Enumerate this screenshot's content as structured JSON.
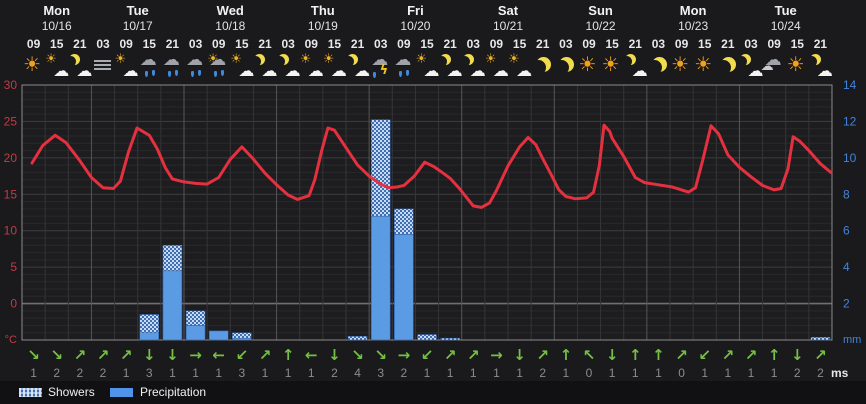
{
  "legend": {
    "showers_label": "Showers",
    "precipitation_label": "Precipitation"
  },
  "axis_units": {
    "temp": "°C",
    "precip": "mm",
    "wind": "ms"
  },
  "days": [
    {
      "label": "Mon",
      "date": "10/16",
      "cols": 3
    },
    {
      "label": "Tue",
      "date": "10/17",
      "cols": 4
    },
    {
      "label": "Wed",
      "date": "10/18",
      "cols": 4
    },
    {
      "label": "Thu",
      "date": "10/19",
      "cols": 4
    },
    {
      "label": "Fri",
      "date": "10/20",
      "cols": 4
    },
    {
      "label": "Sat",
      "date": "10/21",
      "cols": 4
    },
    {
      "label": "Sun",
      "date": "10/22",
      "cols": 4
    },
    {
      "label": "Mon",
      "date": "10/23",
      "cols": 4
    },
    {
      "label": "Tue",
      "date": "10/24",
      "cols": 4
    }
  ],
  "columns": [
    {
      "hour": "09",
      "icon": "sun",
      "wind_dir": "se",
      "wind_speed": 1
    },
    {
      "hour": "15",
      "icon": "sun-cloud",
      "wind_dir": "se",
      "wind_speed": 2
    },
    {
      "hour": "21",
      "icon": "moon-cloud",
      "wind_dir": "ne",
      "wind_speed": 2
    },
    {
      "hour": "03",
      "icon": "fog",
      "wind_dir": "ne",
      "wind_speed": 2
    },
    {
      "hour": "09",
      "icon": "sun-cloud",
      "wind_dir": "ne",
      "wind_speed": 1
    },
    {
      "hour": "15",
      "icon": "rain",
      "wind_dir": "s",
      "wind_speed": 3
    },
    {
      "hour": "21",
      "icon": "rain",
      "wind_dir": "s",
      "wind_speed": 1
    },
    {
      "hour": "03",
      "icon": "rain",
      "wind_dir": "e",
      "wind_speed": 1
    },
    {
      "hour": "09",
      "icon": "sun-rain",
      "wind_dir": "w",
      "wind_speed": 1
    },
    {
      "hour": "15",
      "icon": "sun-cloud",
      "wind_dir": "sw",
      "wind_speed": 3
    },
    {
      "hour": "21",
      "icon": "moon-cloud",
      "wind_dir": "ne",
      "wind_speed": 1
    },
    {
      "hour": "03",
      "icon": "moon-cloud",
      "wind_dir": "n",
      "wind_speed": 1
    },
    {
      "hour": "09",
      "icon": "sun-cloud",
      "wind_dir": "w",
      "wind_speed": 1
    },
    {
      "hour": "15",
      "icon": "sun-cloud",
      "wind_dir": "s",
      "wind_speed": 2
    },
    {
      "hour": "21",
      "icon": "moon-cloud",
      "wind_dir": "se",
      "wind_speed": 4
    },
    {
      "hour": "03",
      "icon": "thunder",
      "wind_dir": "se",
      "wind_speed": 3
    },
    {
      "hour": "09",
      "icon": "rain",
      "wind_dir": "e",
      "wind_speed": 2
    },
    {
      "hour": "15",
      "icon": "sun-cloud",
      "wind_dir": "sw",
      "wind_speed": 1
    },
    {
      "hour": "21",
      "icon": "moon-cloud",
      "wind_dir": "ne",
      "wind_speed": 1
    },
    {
      "hour": "03",
      "icon": "moon-cloud",
      "wind_dir": "ne",
      "wind_speed": 1
    },
    {
      "hour": "09",
      "icon": "sun-cloud",
      "wind_dir": "e",
      "wind_speed": 1
    },
    {
      "hour": "15",
      "icon": "sun-cloud",
      "wind_dir": "s",
      "wind_speed": 1
    },
    {
      "hour": "21",
      "icon": "moon",
      "wind_dir": "ne",
      "wind_speed": 2
    },
    {
      "hour": "03",
      "icon": "moon",
      "wind_dir": "n",
      "wind_speed": 1
    },
    {
      "hour": "09",
      "icon": "sun",
      "wind_dir": "nw",
      "wind_speed": 0
    },
    {
      "hour": "15",
      "icon": "sun",
      "wind_dir": "s",
      "wind_speed": 1
    },
    {
      "hour": "21",
      "icon": "moon-cloud",
      "wind_dir": "n",
      "wind_speed": 1
    },
    {
      "hour": "03",
      "icon": "moon",
      "wind_dir": "n",
      "wind_speed": 1
    },
    {
      "hour": "09",
      "icon": "sun",
      "wind_dir": "ne",
      "wind_speed": 0
    },
    {
      "hour": "15",
      "icon": "sun",
      "wind_dir": "sw",
      "wind_speed": 1
    },
    {
      "hour": "21",
      "icon": "moon",
      "wind_dir": "ne",
      "wind_speed": 1
    },
    {
      "hour": "03",
      "icon": "moon-cloud",
      "wind_dir": "ne",
      "wind_speed": 1
    },
    {
      "hour": "09",
      "icon": "cloudy",
      "wind_dir": "n",
      "wind_speed": 1
    },
    {
      "hour": "15",
      "icon": "sun",
      "wind_dir": "s",
      "wind_speed": 2
    },
    {
      "hour": "21",
      "icon": "moon-cloud",
      "wind_dir": "ne",
      "wind_speed": 2
    }
  ],
  "chart_data": {
    "type": "line",
    "title": "",
    "categories": [
      "09",
      "15",
      "21",
      "03",
      "09",
      "15",
      "21",
      "03",
      "09",
      "15",
      "21",
      "03",
      "09",
      "15",
      "21",
      "03",
      "09",
      "15",
      "21",
      "03",
      "09",
      "15",
      "21",
      "03",
      "09",
      "15",
      "21",
      "03",
      "09",
      "15",
      "21",
      "03",
      "09",
      "15",
      "21"
    ],
    "left_axis": {
      "label": "°C",
      "range": [
        -5,
        30
      ],
      "ticks": [
        30,
        25,
        20,
        15,
        10,
        5,
        0
      ]
    },
    "right_axis": {
      "label": "mm",
      "range": [
        0,
        14
      ],
      "ticks": [
        14,
        12,
        10,
        8,
        6,
        4,
        2
      ]
    },
    "grid": true,
    "legend_position": "bottom-left",
    "series": [
      {
        "name": "Temperature",
        "type": "line",
        "unit": "°C",
        "values": [
          19.3,
          23.1,
          19.6,
          15.9,
          20.0,
          23.1,
          17.1,
          16.5,
          17.3,
          21.5,
          17.9,
          14.9,
          16.5,
          23.8,
          19.0,
          16.4,
          16.2,
          19.3,
          17.2,
          13.4,
          15.5,
          21.5,
          19.9,
          14.7,
          14.6,
          22.7,
          17.3,
          16.3,
          15.6,
          22.0,
          20.4,
          17.4,
          15.6,
          22.5,
          19.2
        ]
      },
      {
        "name": "Precipitation",
        "type": "bar",
        "unit": "mm",
        "values": [
          0,
          0,
          0,
          0,
          0,
          0.4,
          3.8,
          0.8,
          0.5,
          0.1,
          0,
          0,
          0,
          0,
          0,
          6.8,
          5.8,
          0,
          0,
          0,
          0,
          0,
          0,
          0,
          0,
          0,
          0,
          0,
          0,
          0,
          0,
          0,
          0,
          0,
          0
        ]
      },
      {
        "name": "Showers",
        "type": "bar",
        "unit": "mm",
        "values": [
          0,
          0,
          0,
          0,
          0,
          1.0,
          1.4,
          0.8,
          0,
          0.3,
          0,
          0,
          0,
          0,
          0.2,
          5.3,
          1.4,
          0.3,
          0.1,
          0,
          0,
          0,
          0,
          0,
          0,
          0,
          0,
          0,
          0,
          0,
          0,
          0,
          0,
          0,
          0.15
        ]
      }
    ],
    "curve_points": [
      [
        -0.07,
        19.3
      ],
      [
        0.4,
        21.7
      ],
      [
        0.93,
        23.1
      ],
      [
        1.4,
        22.1
      ],
      [
        2.0,
        19.6
      ],
      [
        2.5,
        17.3
      ],
      [
        3.0,
        15.9
      ],
      [
        3.45,
        15.8
      ],
      [
        3.75,
        16.8
      ],
      [
        4.1,
        20.8
      ],
      [
        4.47,
        24.1
      ],
      [
        5.0,
        23.1
      ],
      [
        5.35,
        21.2
      ],
      [
        5.7,
        18.6
      ],
      [
        6.0,
        17.1
      ],
      [
        6.5,
        16.7
      ],
      [
        7.0,
        16.5
      ],
      [
        7.5,
        16.4
      ],
      [
        8.0,
        17.3
      ],
      [
        8.5,
        19.8
      ],
      [
        9.0,
        21.5
      ],
      [
        9.45,
        20.0
      ],
      [
        10.0,
        17.9
      ],
      [
        10.5,
        16.3
      ],
      [
        11.0,
        14.9
      ],
      [
        11.4,
        14.3
      ],
      [
        11.9,
        14.8
      ],
      [
        12.15,
        17.0
      ],
      [
        12.45,
        21.0
      ],
      [
        12.72,
        24.1
      ],
      [
        13.0,
        23.8
      ],
      [
        13.5,
        21.4
      ],
      [
        14.0,
        19.0
      ],
      [
        14.5,
        17.5
      ],
      [
        15.0,
        16.4
      ],
      [
        15.35,
        15.9
      ],
      [
        15.7,
        16.0
      ],
      [
        16.0,
        16.2
      ],
      [
        16.45,
        17.5
      ],
      [
        16.9,
        19.4
      ],
      [
        17.3,
        18.8
      ],
      [
        17.7,
        17.9
      ],
      [
        18.0,
        17.2
      ],
      [
        18.4,
        15.8
      ],
      [
        19.0,
        13.4
      ],
      [
        19.35,
        13.2
      ],
      [
        19.7,
        13.8
      ],
      [
        20.0,
        15.5
      ],
      [
        20.5,
        18.9
      ],
      [
        21.0,
        21.5
      ],
      [
        21.37,
        22.8
      ],
      [
        21.7,
        21.8
      ],
      [
        22.0,
        19.9
      ],
      [
        22.35,
        17.8
      ],
      [
        22.7,
        15.6
      ],
      [
        23.0,
        14.7
      ],
      [
        23.4,
        14.4
      ],
      [
        23.9,
        14.5
      ],
      [
        24.2,
        15.3
      ],
      [
        24.45,
        19.0
      ],
      [
        24.65,
        24.5
      ],
      [
        24.9,
        23.6
      ],
      [
        25.0,
        22.7
      ],
      [
        25.5,
        20.2
      ],
      [
        26.0,
        17.3
      ],
      [
        26.4,
        16.6
      ],
      [
        27.0,
        16.3
      ],
      [
        27.6,
        16.0
      ],
      [
        28.0,
        15.6
      ],
      [
        28.3,
        15.3
      ],
      [
        28.6,
        15.9
      ],
      [
        28.9,
        19.5
      ],
      [
        29.27,
        24.4
      ],
      [
        29.6,
        23.3
      ],
      [
        30.0,
        20.4
      ],
      [
        30.5,
        18.7
      ],
      [
        31.0,
        17.4
      ],
      [
        31.5,
        16.2
      ],
      [
        32.0,
        15.6
      ],
      [
        32.3,
        15.8
      ],
      [
        32.6,
        18.5
      ],
      [
        32.82,
        22.9
      ],
      [
        33.1,
        22.3
      ],
      [
        33.5,
        21.0
      ],
      [
        34.0,
        19.2
      ],
      [
        34.45,
        18.0
      ]
    ]
  },
  "colors": {
    "temp_line": "#e5303f",
    "temp_axis_text": "#c23b44",
    "precip_axis_text": "#4184dd",
    "bar_fill": "#5b9be4",
    "bar_edge": "#2f5fa8",
    "hatch_light": "#c6daf3",
    "hatch_dark": "#3f6fb0",
    "wind_arrow": "#74c044",
    "wind_speed_text": "#8b8c8e",
    "plot_bg": "#1d1d1f",
    "grid_minor": "#29292b",
    "grid_major": "#3e3e40",
    "grid_zero": "#707074",
    "grid_vert": "#353537",
    "grid_day": "#565658",
    "plot_border": "#8a8a8c"
  }
}
